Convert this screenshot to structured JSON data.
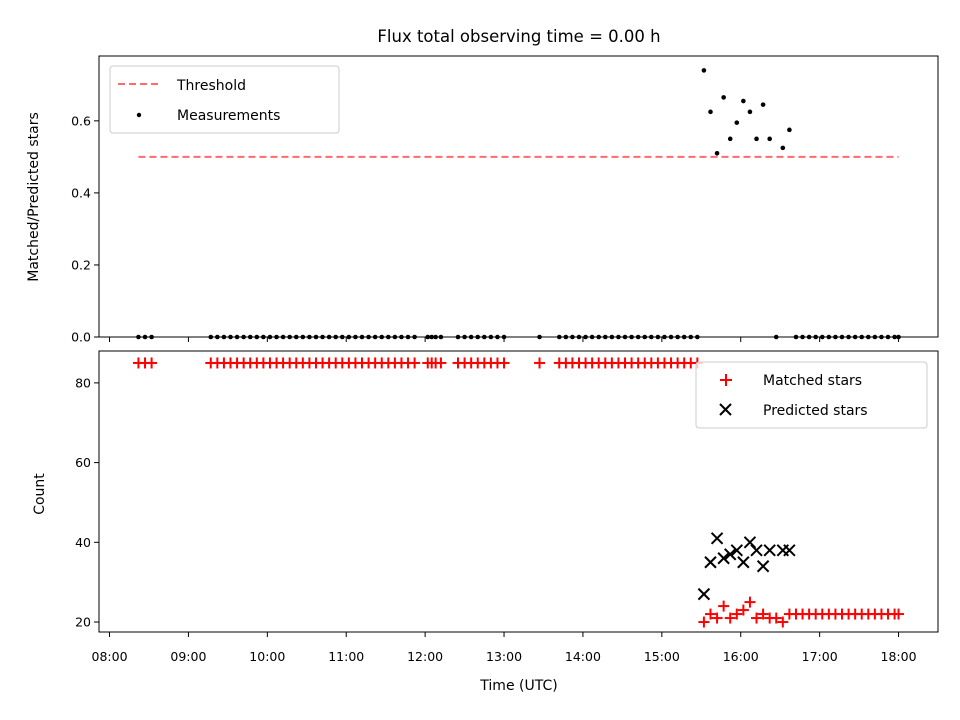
{
  "chart_data": [
    {
      "type": "scatter",
      "title": "Flux total observing time = 0.00 h",
      "xlabel": "",
      "ylabel": "Matched/Predicted stars",
      "xlim": [
        "07:52",
        "18:30"
      ],
      "ylim": [
        0,
        0.78
      ],
      "yticks": [
        "0.0",
        "0.2",
        "0.4",
        "0.6"
      ],
      "grid": false,
      "legend_position": "top-left",
      "threshold": {
        "name": "Threshold",
        "value": 0.5,
        "x_start": "08:22",
        "x_end": "18:00",
        "color": "#ff6b6b",
        "style": "dashed"
      },
      "series": [
        {
          "name": "Measurements",
          "marker": "dot",
          "color": "#000000",
          "points": [
            [
              "08:22",
              0
            ],
            [
              "08:27",
              0
            ],
            [
              "08:32",
              0
            ],
            [
              "09:17",
              0
            ],
            [
              "09:22",
              0
            ],
            [
              "09:27",
              0
            ],
            [
              "09:32",
              0
            ],
            [
              "09:37",
              0
            ],
            [
              "09:42",
              0
            ],
            [
              "09:47",
              0
            ],
            [
              "09:52",
              0
            ],
            [
              "09:57",
              0
            ],
            [
              "10:02",
              0
            ],
            [
              "10:07",
              0
            ],
            [
              "10:12",
              0
            ],
            [
              "10:17",
              0
            ],
            [
              "10:22",
              0
            ],
            [
              "10:27",
              0
            ],
            [
              "10:32",
              0
            ],
            [
              "10:37",
              0
            ],
            [
              "10:42",
              0
            ],
            [
              "10:47",
              0
            ],
            [
              "10:52",
              0
            ],
            [
              "10:57",
              0
            ],
            [
              "11:02",
              0
            ],
            [
              "11:07",
              0
            ],
            [
              "11:12",
              0
            ],
            [
              "11:17",
              0
            ],
            [
              "11:22",
              0
            ],
            [
              "11:27",
              0
            ],
            [
              "11:32",
              0
            ],
            [
              "11:37",
              0
            ],
            [
              "11:42",
              0
            ],
            [
              "11:47",
              0
            ],
            [
              "11:52",
              0
            ],
            [
              "12:02",
              0
            ],
            [
              "12:05",
              0
            ],
            [
              "12:08",
              0
            ],
            [
              "12:12",
              0
            ],
            [
              "12:25",
              0
            ],
            [
              "12:30",
              0
            ],
            [
              "12:35",
              0
            ],
            [
              "12:40",
              0
            ],
            [
              "12:45",
              0
            ],
            [
              "12:50",
              0
            ],
            [
              "12:55",
              0
            ],
            [
              "13:00",
              0
            ],
            [
              "13:27",
              0
            ],
            [
              "13:42",
              0
            ],
            [
              "13:47",
              0
            ],
            [
              "13:52",
              0
            ],
            [
              "13:57",
              0
            ],
            [
              "14:02",
              0
            ],
            [
              "14:07",
              0
            ],
            [
              "14:12",
              0
            ],
            [
              "14:17",
              0
            ],
            [
              "14:22",
              0
            ],
            [
              "14:27",
              0
            ],
            [
              "14:32",
              0
            ],
            [
              "14:37",
              0
            ],
            [
              "14:42",
              0
            ],
            [
              "14:47",
              0
            ],
            [
              "14:52",
              0
            ],
            [
              "14:57",
              0
            ],
            [
              "15:02",
              0
            ],
            [
              "15:07",
              0
            ],
            [
              "15:12",
              0
            ],
            [
              "15:17",
              0
            ],
            [
              "15:22",
              0
            ],
            [
              "15:27",
              0
            ],
            [
              "15:32",
              0.74
            ],
            [
              "15:37",
              0.625
            ],
            [
              "15:42",
              0.51
            ],
            [
              "15:47",
              0.665
            ],
            [
              "15:52",
              0.55
            ],
            [
              "15:57",
              0.595
            ],
            [
              "16:02",
              0.655
            ],
            [
              "16:07",
              0.625
            ],
            [
              "16:12",
              0.55
            ],
            [
              "16:17",
              0.645
            ],
            [
              "16:22",
              0.55
            ],
            [
              "16:27",
              0
            ],
            [
              "16:32",
              0.525
            ],
            [
              "16:37",
              0.575
            ],
            [
              "16:42",
              0
            ],
            [
              "16:47",
              0
            ],
            [
              "16:52",
              0
            ],
            [
              "16:57",
              0
            ],
            [
              "17:02",
              0
            ],
            [
              "17:07",
              0
            ],
            [
              "17:12",
              0
            ],
            [
              "17:17",
              0
            ],
            [
              "17:22",
              0
            ],
            [
              "17:27",
              0
            ],
            [
              "17:32",
              0
            ],
            [
              "17:37",
              0
            ],
            [
              "17:42",
              0
            ],
            [
              "17:47",
              0
            ],
            [
              "17:52",
              0
            ],
            [
              "17:57",
              0
            ],
            [
              "18:00",
              0
            ]
          ]
        }
      ]
    },
    {
      "type": "scatter",
      "title": "",
      "xlabel": "Time (UTC)",
      "ylabel": "Count",
      "xlim": [
        "07:52",
        "18:30"
      ],
      "ylim": [
        17.5,
        88
      ],
      "xticks": [
        "08:00",
        "09:00",
        "10:00",
        "11:00",
        "12:00",
        "13:00",
        "14:00",
        "15:00",
        "16:00",
        "17:00",
        "18:00"
      ],
      "yticks": [
        "20",
        "40",
        "60",
        "80"
      ],
      "grid": false,
      "legend_position": "top-right",
      "series": [
        {
          "name": "Matched stars",
          "marker": "plus",
          "color": "#ff0000",
          "points": [
            [
              "08:22",
              85
            ],
            [
              "08:27",
              85
            ],
            [
              "08:32",
              85
            ],
            [
              "09:17",
              85
            ],
            [
              "09:22",
              85
            ],
            [
              "09:27",
              85
            ],
            [
              "09:32",
              85
            ],
            [
              "09:37",
              85
            ],
            [
              "09:42",
              85
            ],
            [
              "09:47",
              85
            ],
            [
              "09:52",
              85
            ],
            [
              "09:57",
              85
            ],
            [
              "10:02",
              85
            ],
            [
              "10:07",
              85
            ],
            [
              "10:12",
              85
            ],
            [
              "10:17",
              85
            ],
            [
              "10:22",
              85
            ],
            [
              "10:27",
              85
            ],
            [
              "10:32",
              85
            ],
            [
              "10:37",
              85
            ],
            [
              "10:42",
              85
            ],
            [
              "10:47",
              85
            ],
            [
              "10:52",
              85
            ],
            [
              "10:57",
              85
            ],
            [
              "11:02",
              85
            ],
            [
              "11:07",
              85
            ],
            [
              "11:12",
              85
            ],
            [
              "11:17",
              85
            ],
            [
              "11:22",
              85
            ],
            [
              "11:27",
              85
            ],
            [
              "11:32",
              85
            ],
            [
              "11:37",
              85
            ],
            [
              "11:42",
              85
            ],
            [
              "11:47",
              85
            ],
            [
              "11:52",
              85
            ],
            [
              "12:02",
              85
            ],
            [
              "12:05",
              85
            ],
            [
              "12:08",
              85
            ],
            [
              "12:12",
              85
            ],
            [
              "12:25",
              85
            ],
            [
              "12:30",
              85
            ],
            [
              "12:35",
              85
            ],
            [
              "12:40",
              85
            ],
            [
              "12:45",
              85
            ],
            [
              "12:50",
              85
            ],
            [
              "12:55",
              85
            ],
            [
              "13:00",
              85
            ],
            [
              "13:27",
              85
            ],
            [
              "13:42",
              85
            ],
            [
              "13:47",
              85
            ],
            [
              "13:52",
              85
            ],
            [
              "13:57",
              85
            ],
            [
              "14:02",
              85
            ],
            [
              "14:07",
              85
            ],
            [
              "14:12",
              85
            ],
            [
              "14:17",
              85
            ],
            [
              "14:22",
              85
            ],
            [
              "14:27",
              85
            ],
            [
              "14:32",
              85
            ],
            [
              "14:37",
              85
            ],
            [
              "14:42",
              85
            ],
            [
              "14:47",
              85
            ],
            [
              "14:52",
              85
            ],
            [
              "14:57",
              85
            ],
            [
              "15:02",
              85
            ],
            [
              "15:07",
              85
            ],
            [
              "15:12",
              85
            ],
            [
              "15:17",
              85
            ],
            [
              "15:22",
              85
            ],
            [
              "15:27",
              85
            ],
            [
              "15:32",
              20
            ],
            [
              "15:37",
              22
            ],
            [
              "15:42",
              21
            ],
            [
              "15:47",
              24
            ],
            [
              "15:52",
              21
            ],
            [
              "15:57",
              22
            ],
            [
              "16:02",
              23
            ],
            [
              "16:07",
              25
            ],
            [
              "16:12",
              21
            ],
            [
              "16:17",
              22
            ],
            [
              "16:22",
              21
            ],
            [
              "16:27",
              21
            ],
            [
              "16:32",
              20
            ],
            [
              "16:37",
              22
            ],
            [
              "16:42",
              22
            ],
            [
              "16:47",
              22
            ],
            [
              "16:52",
              22
            ],
            [
              "16:57",
              22
            ],
            [
              "17:02",
              22
            ],
            [
              "17:07",
              22
            ],
            [
              "17:12",
              22
            ],
            [
              "17:17",
              22
            ],
            [
              "17:22",
              22
            ],
            [
              "17:27",
              22
            ],
            [
              "17:32",
              22
            ],
            [
              "17:37",
              22
            ],
            [
              "17:42",
              22
            ],
            [
              "17:47",
              22
            ],
            [
              "17:52",
              22
            ],
            [
              "17:57",
              22
            ],
            [
              "18:00",
              22
            ]
          ]
        },
        {
          "name": "Predicted stars",
          "marker": "x",
          "color": "#000000",
          "points": [
            [
              "15:32",
              27
            ],
            [
              "15:37",
              35
            ],
            [
              "15:42",
              41
            ],
            [
              "15:47",
              36
            ],
            [
              "15:52",
              37
            ],
            [
              "15:57",
              38
            ],
            [
              "16:02",
              35
            ],
            [
              "16:07",
              40
            ],
            [
              "16:12",
              38
            ],
            [
              "16:17",
              34
            ],
            [
              "16:22",
              38
            ],
            [
              "16:32",
              38
            ],
            [
              "16:37",
              38
            ]
          ]
        }
      ]
    }
  ]
}
